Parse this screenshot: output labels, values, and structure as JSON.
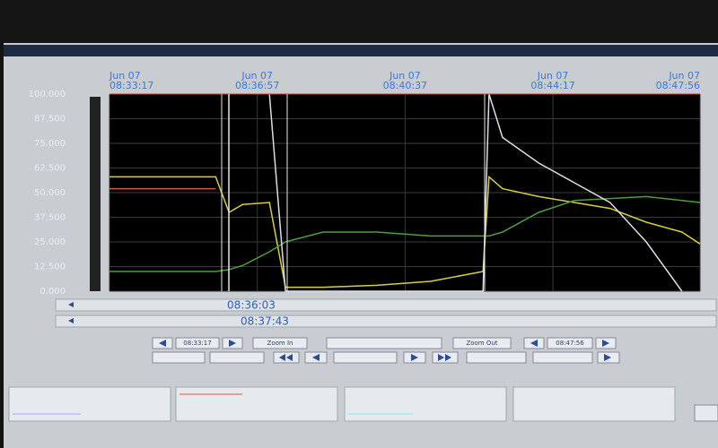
{
  "chart_data": {
    "type": "line",
    "x": [
      "08:33:17",
      "08:34:34",
      "08:35:55",
      "08:36:15",
      "08:36:35",
      "08:37:15",
      "08:37:39",
      "08:38:35",
      "08:39:55",
      "08:41:15",
      "08:42:33",
      "08:42:42",
      "08:43:02",
      "08:43:56",
      "08:44:49",
      "08:45:42",
      "08:46:36",
      "08:47:29",
      "08:47:56"
    ],
    "series": [
      {
        "color": "#d9cf3c",
        "values": [
          58,
          58,
          58,
          40,
          44,
          45,
          2,
          2,
          3,
          5,
          10,
          58,
          52,
          48,
          45,
          42,
          35,
          30,
          24
        ]
      },
      {
        "color": "#e0553f",
        "values": [
          52,
          52,
          52,
          null,
          null,
          null,
          null,
          null,
          null,
          null,
          null,
          null,
          null,
          null,
          null,
          null,
          null,
          null,
          null
        ]
      },
      {
        "color": "#4f9e3c",
        "values": [
          10,
          10,
          10,
          11,
          13,
          20,
          25,
          30,
          30,
          28,
          28,
          28,
          30,
          40,
          46,
          47,
          48,
          46,
          45
        ]
      },
      {
        "color": "#dcdce4",
        "values": [
          null,
          null,
          null,
          null,
          null,
          100,
          0,
          0,
          0,
          0,
          0,
          100,
          78,
          65,
          55,
          45,
          25,
          0,
          null
        ]
      }
    ],
    "xlim": [
      "08:33:17",
      "08:47:56"
    ],
    "xticks": [
      "08:33:17",
      "08:36:57",
      "08:40:37",
      "08:44:17",
      "08:47:56"
    ],
    "xtick_date": "Jun 07",
    "ylim": [
      0,
      100
    ],
    "yticks": [
      {
        "value": 100,
        "label": "100.000"
      },
      {
        "value": 87.5,
        "label": "87.500"
      },
      {
        "value": 75,
        "label": "75.000"
      },
      {
        "value": 62.5,
        "label": "62.500"
      },
      {
        "value": 50,
        "label": "50.000"
      },
      {
        "value": 37.5,
        "label": "37.500"
      },
      {
        "value": 25,
        "label": "25.000"
      },
      {
        "value": 12.5,
        "label": "12.500"
      },
      {
        "value": 0,
        "label": "0.000"
      }
    ],
    "grid": true
  },
  "time_cursors": [
    "08:36:03",
    "08:37:43"
  ],
  "controls": {
    "start": "08:33:17",
    "zoom_in": "Zoom In",
    "zoom_out": "Zoom Out",
    "end": "08:47:56"
  }
}
